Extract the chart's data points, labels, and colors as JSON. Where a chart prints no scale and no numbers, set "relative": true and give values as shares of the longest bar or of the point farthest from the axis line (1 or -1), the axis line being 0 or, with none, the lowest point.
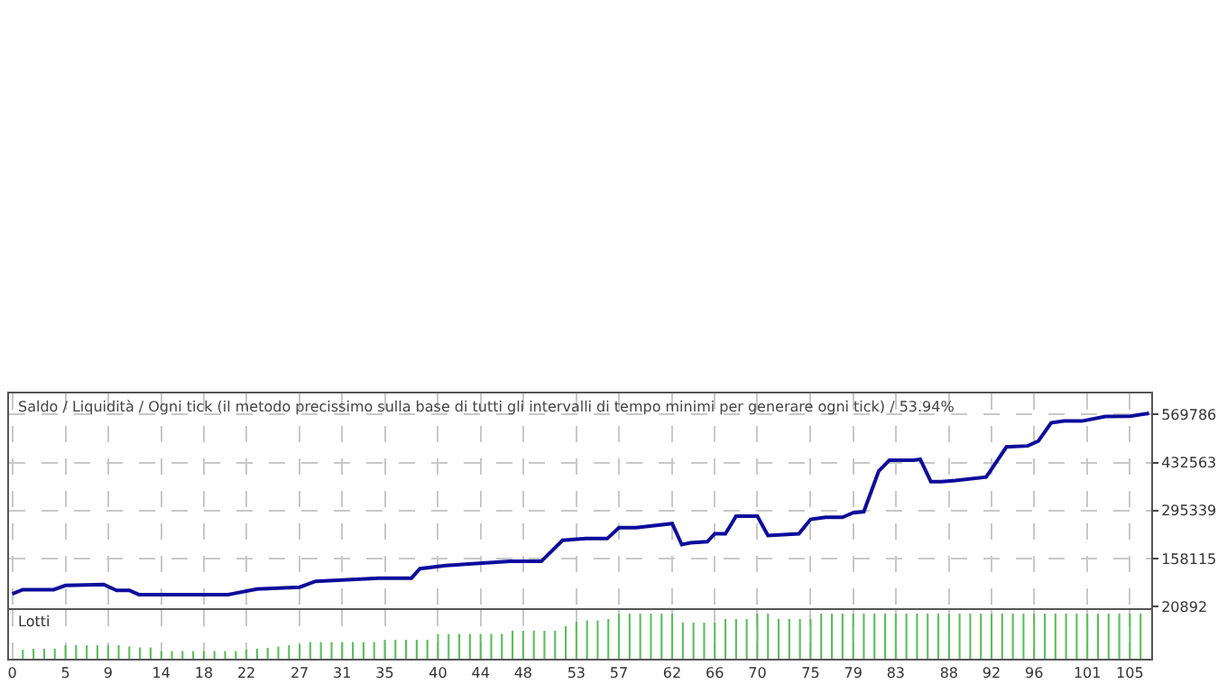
{
  "chart_data": [
    {
      "type": "line",
      "title": "Saldo / Liquidità / Ogni tick (il metodo precissimo sulla base di tutti gli intervalli di tempo minimi per generare ogni tick) / 53.94%",
      "color": "#0c0c9c",
      "x": [
        0,
        1,
        3.9,
        5,
        8.6,
        9.8,
        11,
        11.9,
        20.3,
        23,
        27,
        28.5,
        34.4,
        37.5,
        38.3,
        40.7,
        46.8,
        49.7,
        51.7,
        53.9,
        55.9,
        57,
        58.6,
        62,
        62.9,
        63.7,
        65.3,
        66,
        67,
        68,
        70,
        71,
        73.9,
        75,
        76.4,
        78,
        79,
        80,
        81.4,
        82.4,
        84.7,
        85.3,
        86.3,
        87.3,
        88.6,
        91.5,
        93.4,
        95.4,
        96.4,
        97.6,
        98.8,
        100.5,
        102.7,
        105,
        106.8
      ],
      "values": [
        57000,
        69000,
        69000,
        81000,
        84000,
        67000,
        67000,
        55000,
        55000,
        71000,
        76000,
        93000,
        102000,
        102000,
        129000,
        138000,
        150000,
        150000,
        210000,
        215000,
        215000,
        246000,
        246000,
        258000,
        198000,
        203000,
        206000,
        229000,
        229000,
        279000,
        279000,
        224000,
        229000,
        270000,
        276000,
        276000,
        289000,
        292000,
        408000,
        439000,
        439000,
        442000,
        378000,
        378000,
        381000,
        391000,
        477000,
        480000,
        494000,
        546000,
        551000,
        551000,
        564000,
        565000,
        573000
      ],
      "xlim": [
        -0.3,
        107
      ],
      "ylim": [
        16000,
        630000
      ],
      "xticks": [
        0,
        5,
        9,
        14,
        18,
        22,
        27,
        31,
        35,
        40,
        44,
        48,
        53,
        57,
        62,
        66,
        70,
        75,
        79,
        83,
        88,
        92,
        96,
        101,
        105
      ],
      "yticks": [
        20892,
        158115,
        295339,
        432563,
        569786
      ],
      "grid": true,
      "tick_labels": "y"
    },
    {
      "type": "bar",
      "title": "Lotti",
      "color": "#5cbf5c",
      "relative": true,
      "x": [
        1,
        2,
        3,
        4,
        5,
        6,
        7,
        8,
        9,
        10,
        11,
        12,
        13,
        14,
        15,
        16,
        17,
        18,
        19,
        20,
        21,
        22,
        23,
        24,
        25,
        26,
        27,
        28,
        29,
        30,
        31,
        32,
        33,
        34,
        35,
        36,
        37,
        38,
        39,
        40,
        41,
        42,
        43,
        44,
        45,
        46,
        47,
        48,
        49,
        50,
        51,
        52,
        53,
        54,
        55,
        56,
        57,
        58,
        59,
        60,
        61,
        62,
        63,
        64,
        65,
        66,
        67,
        68,
        69,
        70,
        71,
        72,
        73,
        74,
        75,
        76,
        77,
        78,
        79,
        80,
        81,
        82,
        83,
        84,
        85,
        86,
        87,
        88,
        89,
        90,
        91,
        92,
        93,
        94,
        95,
        96,
        97,
        98,
        99,
        100,
        101,
        102,
        103,
        104,
        105,
        106
      ],
      "values": [
        0.2,
        0.22,
        0.22,
        0.22,
        0.3,
        0.3,
        0.3,
        0.3,
        0.3,
        0.3,
        0.27,
        0.25,
        0.25,
        0.17,
        0.17,
        0.17,
        0.17,
        0.17,
        0.17,
        0.17,
        0.17,
        0.2,
        0.22,
        0.24,
        0.27,
        0.3,
        0.32,
        0.37,
        0.37,
        0.37,
        0.37,
        0.37,
        0.37,
        0.37,
        0.42,
        0.42,
        0.42,
        0.42,
        0.42,
        0.55,
        0.55,
        0.55,
        0.55,
        0.55,
        0.55,
        0.55,
        0.62,
        0.62,
        0.62,
        0.62,
        0.62,
        0.72,
        0.82,
        0.85,
        0.85,
        0.88,
        1,
        1,
        1,
        1,
        1,
        1,
        0.8,
        0.8,
        0.8,
        0.8,
        0.88,
        0.88,
        0.88,
        1,
        1,
        0.88,
        0.88,
        0.88,
        0.88,
        1,
        1,
        1,
        1,
        1,
        1,
        1,
        1,
        1,
        1,
        1,
        1,
        1,
        1,
        1,
        1,
        1,
        1,
        1,
        1,
        1,
        1,
        1,
        1,
        1,
        1,
        1,
        1,
        1,
        1,
        1
      ],
      "xlim": [
        -0.3,
        107
      ],
      "xticks": [
        0,
        5,
        9,
        14,
        18,
        22,
        27,
        31,
        35,
        40,
        44,
        48,
        53,
        57,
        62,
        66,
        70,
        75,
        79,
        83,
        88,
        92,
        96,
        101,
        105
      ],
      "grid": "x",
      "tick_labels": "x"
    }
  ]
}
